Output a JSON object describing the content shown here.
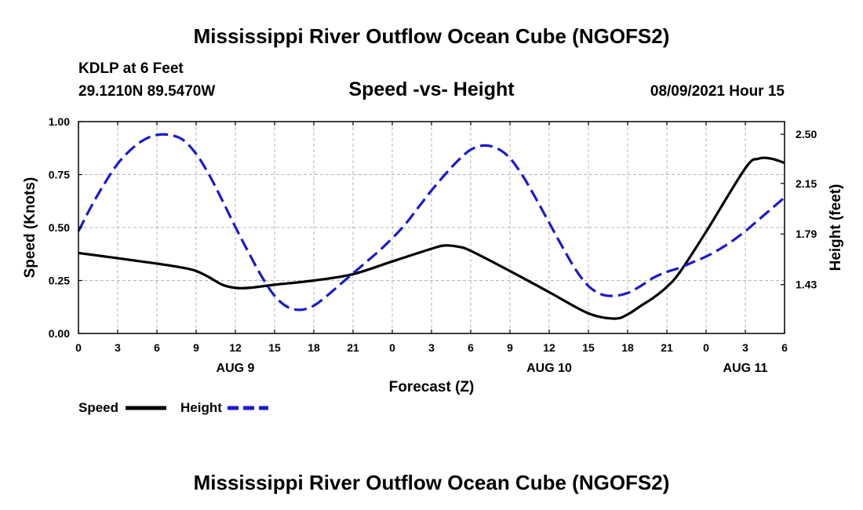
{
  "header": {
    "title": "Mississippi River Outflow Ocean Cube (NGOFS2)",
    "station": "KDLP at 6 Feet",
    "coords": "29.1210N  89.5470W",
    "subtitle": "Speed -vs- Height",
    "datetime": "08/09/2021 Hour 15"
  },
  "footer": {
    "title": "Mississippi River Outflow Ocean Cube (NGOFS2)"
  },
  "colors": {
    "speed": "#000000",
    "height": "#1a1acc",
    "grid": "#b4b4b4"
  },
  "chart_data": {
    "type": "line",
    "title": "Speed -vs- Height",
    "xlabel": "Forecast (Z)",
    "ylabel": "Speed (Knots)",
    "y2label": "Height (feet)",
    "xlim": [
      0,
      54
    ],
    "ylim": [
      0,
      1.0
    ],
    "y2lim": [
      1.082,
      2.59
    ],
    "x_ticks": [
      0,
      3,
      6,
      9,
      12,
      15,
      18,
      21,
      24,
      27,
      30,
      33,
      36,
      39,
      42,
      45,
      48,
      51,
      54
    ],
    "x_tick_labels": [
      "0",
      "3",
      "6",
      "9",
      "12",
      "15",
      "18",
      "21",
      "0",
      "3",
      "6",
      "9",
      "12",
      "15",
      "18",
      "21",
      "0",
      "3",
      "6"
    ],
    "day_labels": [
      {
        "x": 12,
        "label": "AUG 9"
      },
      {
        "x": 36,
        "label": "AUG 10"
      },
      {
        "x": 51,
        "label": "AUG 11"
      }
    ],
    "y_ticks": [
      0.0,
      0.25,
      0.5,
      0.75,
      1.0
    ],
    "y_tick_labels": [
      "0.00",
      "0.25",
      "0.50",
      "0.75",
      "1.00"
    ],
    "y2_ticks": [
      1.43,
      1.79,
      2.15,
      2.5
    ],
    "y2_tick_labels": [
      "1.43",
      "1.79",
      "2.15",
      "2.50"
    ],
    "grid": true,
    "series": [
      {
        "name": "Speed",
        "axis": "left",
        "style": "solid",
        "x": [
          0,
          3,
          6,
          8,
          9,
          10,
          11,
          12,
          13,
          15,
          18,
          21,
          24,
          27,
          28,
          29,
          30,
          33,
          36,
          39,
          41,
          42,
          43,
          44,
          45,
          46,
          48,
          51,
          52,
          53,
          54
        ],
        "y": [
          0.38,
          0.355,
          0.33,
          0.31,
          0.295,
          0.265,
          0.23,
          0.215,
          0.215,
          0.23,
          0.25,
          0.28,
          0.34,
          0.4,
          0.415,
          0.41,
          0.39,
          0.295,
          0.195,
          0.095,
          0.07,
          0.09,
          0.13,
          0.17,
          0.22,
          0.29,
          0.48,
          0.78,
          0.825,
          0.825,
          0.805
        ]
      },
      {
        "name": "Height",
        "axis": "right",
        "style": "dashed",
        "x": [
          0,
          1,
          2,
          3,
          4,
          5,
          6,
          7,
          8,
          9,
          10,
          11,
          12,
          13,
          14,
          15,
          16,
          17,
          18,
          19,
          20,
          21,
          22,
          23,
          24,
          25,
          26,
          27,
          28,
          29,
          30,
          31,
          32,
          33,
          34,
          35,
          36,
          37,
          38,
          39,
          40,
          41,
          42,
          43,
          44,
          45,
          46,
          47,
          48,
          49,
          50,
          51,
          52,
          53,
          54
        ],
        "y": [
          1.81,
          1.99,
          2.15,
          2.29,
          2.39,
          2.46,
          2.495,
          2.495,
          2.46,
          2.36,
          2.21,
          2.03,
          1.84,
          1.66,
          1.49,
          1.35,
          1.27,
          1.25,
          1.28,
          1.35,
          1.43,
          1.51,
          1.59,
          1.67,
          1.76,
          1.86,
          1.98,
          2.1,
          2.21,
          2.31,
          2.39,
          2.42,
          2.4,
          2.33,
          2.2,
          2.04,
          1.87,
          1.7,
          1.54,
          1.42,
          1.36,
          1.35,
          1.37,
          1.42,
          1.48,
          1.52,
          1.55,
          1.59,
          1.63,
          1.68,
          1.74,
          1.81,
          1.89,
          1.97,
          2.05
        ]
      }
    ]
  }
}
